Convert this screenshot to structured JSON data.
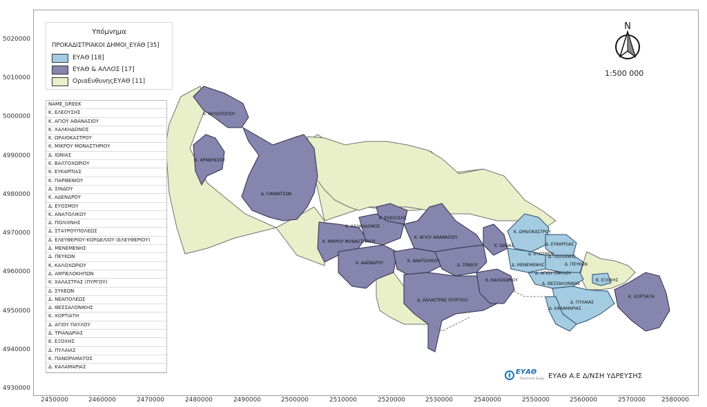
{
  "legend": {
    "title": "Υπόμνημα",
    "layer": "ΠΡΟΚΑΔΙΣΤΡΙΑΚΟΙ ΔΗΜΟΙ_ΕΥΑΘ [35]",
    "items": [
      {
        "label": "ΕΥΑΘ [18]",
        "color": "#a3cbe2"
      },
      {
        "label": "ΕΥΑΘ & ΑΛΛΟΣ [17]",
        "color": "#8585ad"
      },
      {
        "label": "ΟριαΕυθυνηςΕΥΑΘ [11]",
        "color": "#e9efc9"
      }
    ]
  },
  "table": {
    "header": "NAME_GREEK",
    "rows": [
      "Κ. ΕΛΕΟΥΣΗΣ",
      "Κ. ΑΓΙΟΥ ΑΘΑΝΑΣΙΟΥ",
      "Κ. ΧΑΛΚΗΔΟΝΟΣ",
      "Κ. ΩΡΑΙΟΚΑΣΤΡΟΥ",
      "Κ. ΜΙΚΡΟΥ ΜΟΝΑΣΤΗΡΙΟΥ",
      "Δ. ΙΩΝΙΑΣ",
      "Κ. ΒΑΛΤΟΧΩΡΙΟΥ",
      "Κ. ΕΥΚΑΡΠΙΑΣ",
      "Κ. ΠΑΡΘΕΝΙΟΥ",
      "Δ. ΣΙΝΔΟΥ",
      "Κ. ΑΔΕΝΔΡΟΥ",
      "Δ. ΕΥΟΣΜΟΥ",
      "Κ. ΑΝΑΤΟΛΙΚΟΥ",
      "Δ. ΠΟΛΙΧΝΗΣ",
      "Δ. ΣΤΑΥΡΟΥΠΟΛΕΩΣ",
      "Δ. ΕΛΕΥΘΕΡΙΟΥ-ΚΟΡΔΕΛΙΟΥ (ΕΛΕΥΘΕΡΙΟΥ)",
      "Δ. ΜΕΝΕΜΕΝΗΣ",
      "Δ. ΠΕΥΚΩΝ",
      "Κ. ΚΑΛΟΧΩΡΙΟΥ",
      "Δ. ΑΜΠΕΛΟΚΗΠΩΝ",
      "Κ. ΧΑΛΑΣΤΡΑΣ (ΠΥΡΓΟΥ)",
      "Δ. ΣΥΚΕΩΝ",
      "Δ. ΝΕΑΠΟΛΕΩΣ",
      "Δ. ΘΕΣΣΑΛΟΝΙΚΗΣ",
      "Κ. ΧΟΡΤΙΑΤΗ",
      "Δ. ΑΓΙΟΥ ΠΑΥΛΟΥ",
      "Δ. ΤΡΙΑΝΔΡΙΑΣ",
      "Κ. ΕΞΟΧΗΣ",
      "Δ. ΠΥΛΑΙΑΣ",
      "Κ. ΠΑΝΟΡΑΜΑΤΟΣ",
      "Δ. ΚΑΛΑΜΑΡΙΑΣ"
    ]
  },
  "axes": {
    "y": [
      "5020000",
      "5010000",
      "5000000",
      "4990000",
      "4980000",
      "4970000",
      "4960000",
      "4950000",
      "4940000",
      "4930000"
    ],
    "x": [
      "2450000",
      "2460000",
      "2470000",
      "2480000",
      "2490000",
      "2500000",
      "2510000",
      "2520000",
      "2530000",
      "2540000",
      "2550000",
      "2560000",
      "2570000",
      "2580000"
    ]
  },
  "north_label": "N",
  "scale": "1:500 000",
  "footer": "ΕΥΑΘ Α.Ε Δ/ΝΣΗ ΥΔΡΕΥΣΗΣ",
  "logo": {
    "text": "ΕΥΑΘ",
    "sub": "Ποιότητα Ζωής"
  },
  "map_labels": [
    "Κ. ΜΥΛΟΤΟΠΟΥ",
    "Κ. ΑΡΑΒΗΣΣΟΥ",
    "Δ. ΓΙΑΝΝΙΤΣΩΝ",
    "Κ. ΕΛΕΟΥΣΗΣ",
    "Κ. ΧΑΛΚΗΔΟΝΟΣ",
    "Κ. ΜΙΚΡΟΥ ΜΟΝΑΣΤΗΡΙΟΥ",
    "Κ. ΑΓΙΟΥ ΑΘΑΝΑΣΙΟΥ",
    "Κ. ΑΔΕΝΔΡΟΥ",
    "Κ. ΑΝΑΤΟΛΙΚΟΥ",
    "Δ. ΣΙΝΔΟΥ",
    "Κ. ΙΩΝΙΑΣ",
    "Κ. ΩΡΑΙΟΚΑΣΤΡΟΥ",
    "Δ. ΕΥΚΑΡΠΙΑΣ",
    "Δ. ΠΟΛΙΧΝΗΣ",
    "Δ. ΕΥΟΣΜΟΥ",
    "Δ. ΜΕΝΕΜΕΝΗΣ",
    "Δ. ΠΕΥΚΩΝ",
    "Δ. ΑΓΙΟΥ ΠΑΥΛΟΥ",
    "Κ. ΚΑΛΟΧΩΡΙΟΥ",
    "Δ. ΘΕΣΣΑΛΟΝΙΚΗΣ",
    "Δ. ΧΑΛΑΣΤΡΑΣ (ΠΥΡΓΟΥ)",
    "Δ. ΠΥΛΑΙΑΣ",
    "Δ. ΚΑΛΑΜΑΡΙΑΣ",
    "Κ. ΕΞΟΧΗΣ",
    "Κ. ΧΟΡΤΙΑΤΗ"
  ]
}
